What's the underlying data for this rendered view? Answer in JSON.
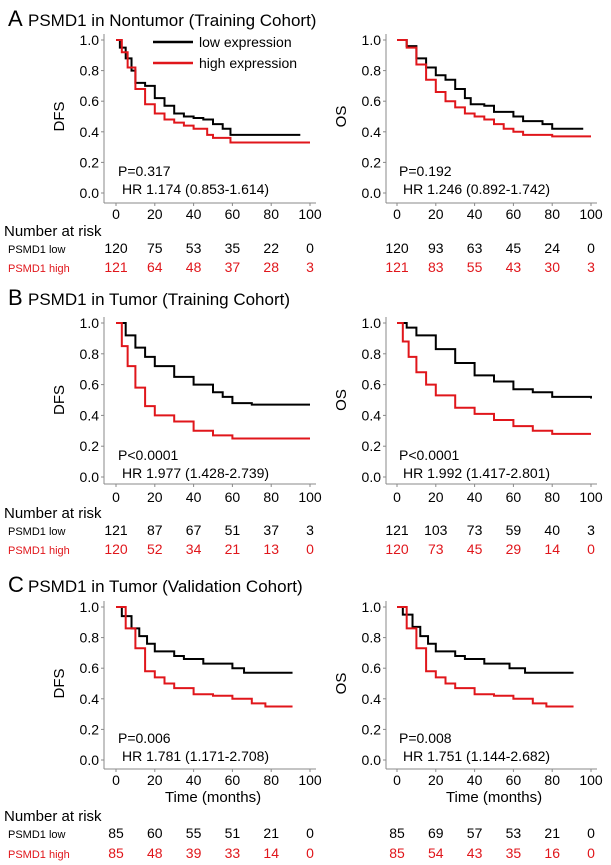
{
  "colors": {
    "low": "#000000",
    "high": "#e0161b"
  },
  "legend": {
    "low": "low expression",
    "high": "high expression"
  },
  "risk_heading": "Number at risk",
  "row_labels": {
    "low": "PSMD1 low",
    "high": "PSMD1 high"
  },
  "panels": [
    {
      "letter": "A",
      "title": "PSMD1 in Nontumor  (Training Cohort)",
      "xlabel": "",
      "plots": [
        {
          "type": "line",
          "ylabel": "DFS",
          "p": "P=0.317",
          "hr": "HR 1.174 (0.853-1.614)",
          "xlim": [
            0,
            100
          ],
          "ylim": [
            0,
            1
          ],
          "xticks": [
            "0",
            "20",
            "40",
            "60",
            "80",
            "100"
          ],
          "yticks": [
            "0.0",
            "0.2",
            "0.4",
            "0.6",
            "0.8",
            "1.0"
          ],
          "low": [
            [
              0,
              1
            ],
            [
              2,
              0.95
            ],
            [
              5,
              0.88
            ],
            [
              8,
              0.8
            ],
            [
              10,
              0.72
            ],
            [
              15,
              0.7
            ],
            [
              20,
              0.62
            ],
            [
              25,
              0.57
            ],
            [
              30,
              0.52
            ],
            [
              35,
              0.5
            ],
            [
              40,
              0.49
            ],
            [
              45,
              0.48
            ],
            [
              50,
              0.45
            ],
            [
              55,
              0.42
            ],
            [
              59,
              0.38
            ],
            [
              95,
              0.38
            ]
          ],
          "high": [
            [
              0,
              1
            ],
            [
              3,
              0.92
            ],
            [
              6,
              0.82
            ],
            [
              10,
              0.68
            ],
            [
              15,
              0.58
            ],
            [
              20,
              0.52
            ],
            [
              25,
              0.48
            ],
            [
              30,
              0.46
            ],
            [
              35,
              0.44
            ],
            [
              40,
              0.42
            ],
            [
              47,
              0.38
            ],
            [
              50,
              0.36
            ],
            [
              59,
              0.33
            ],
            [
              100,
              0.33
            ]
          ],
          "risk_low": [
            "120",
            "75",
            "53",
            "35",
            "22",
            "0"
          ],
          "risk_high": [
            "121",
            "64",
            "48",
            "37",
            "28",
            "3"
          ]
        },
        {
          "type": "line",
          "ylabel": "OS",
          "p": "P=0.192",
          "hr": "HR 1.246 (0.892-1.742)",
          "xlim": [
            0,
            100
          ],
          "ylim": [
            0,
            1
          ],
          "xticks": [
            "0",
            "20",
            "40",
            "60",
            "80",
            "100"
          ],
          "yticks": [
            "0.0",
            "0.2",
            "0.4",
            "0.6",
            "0.8",
            "1.0"
          ],
          "low": [
            [
              0,
              1
            ],
            [
              5,
              0.96
            ],
            [
              10,
              0.88
            ],
            [
              15,
              0.82
            ],
            [
              20,
              0.77
            ],
            [
              25,
              0.74
            ],
            [
              30,
              0.68
            ],
            [
              35,
              0.62
            ],
            [
              38,
              0.58
            ],
            [
              45,
              0.57
            ],
            [
              50,
              0.53
            ],
            [
              60,
              0.5
            ],
            [
              65,
              0.47
            ],
            [
              75,
              0.45
            ],
            [
              80,
              0.42
            ],
            [
              96,
              0.42
            ]
          ],
          "high": [
            [
              0,
              1
            ],
            [
              5,
              0.95
            ],
            [
              10,
              0.84
            ],
            [
              15,
              0.74
            ],
            [
              20,
              0.66
            ],
            [
              25,
              0.6
            ],
            [
              30,
              0.56
            ],
            [
              35,
              0.52
            ],
            [
              40,
              0.5
            ],
            [
              45,
              0.48
            ],
            [
              50,
              0.45
            ],
            [
              55,
              0.42
            ],
            [
              60,
              0.4
            ],
            [
              65,
              0.38
            ],
            [
              80,
              0.37
            ],
            [
              100,
              0.37
            ]
          ],
          "risk_low": [
            "120",
            "93",
            "63",
            "45",
            "24",
            "0"
          ],
          "risk_high": [
            "121",
            "83",
            "55",
            "43",
            "30",
            "3"
          ]
        }
      ]
    },
    {
      "letter": "B",
      "title": "PSMD1 in Tumor (Training Cohort)",
      "xlabel": "",
      "plots": [
        {
          "type": "line",
          "ylabel": "DFS",
          "p": "P<0.0001",
          "hr": "HR 1.977 (1.428-2.739)",
          "xlim": [
            0,
            100
          ],
          "ylim": [
            0,
            1
          ],
          "xticks": [
            "0",
            "20",
            "40",
            "60",
            "80",
            "100"
          ],
          "yticks": [
            "0.0",
            "0.2",
            "0.4",
            "0.6",
            "0.8",
            "1.0"
          ],
          "low": [
            [
              0,
              1
            ],
            [
              5,
              0.92
            ],
            [
              10,
              0.84
            ],
            [
              15,
              0.78
            ],
            [
              20,
              0.72
            ],
            [
              30,
              0.65
            ],
            [
              40,
              0.6
            ],
            [
              50,
              0.55
            ],
            [
              55,
              0.52
            ],
            [
              60,
              0.48
            ],
            [
              70,
              0.47
            ],
            [
              100,
              0.47
            ]
          ],
          "high": [
            [
              0,
              1
            ],
            [
              3,
              0.85
            ],
            [
              6,
              0.72
            ],
            [
              10,
              0.58
            ],
            [
              15,
              0.46
            ],
            [
              20,
              0.4
            ],
            [
              30,
              0.36
            ],
            [
              40,
              0.3
            ],
            [
              50,
              0.27
            ],
            [
              60,
              0.25
            ],
            [
              100,
              0.25
            ]
          ],
          "risk_low": [
            "121",
            "87",
            "67",
            "51",
            "37",
            "3"
          ],
          "risk_high": [
            "120",
            "52",
            "34",
            "21",
            "13",
            "0"
          ]
        },
        {
          "type": "line",
          "ylabel": "OS",
          "p": "P<0.0001",
          "hr": "HR 1.992 (1.417-2.801)",
          "xlim": [
            0,
            100
          ],
          "ylim": [
            0,
            1
          ],
          "xticks": [
            "0",
            "20",
            "40",
            "60",
            "80",
            "100"
          ],
          "yticks": [
            "0.0",
            "0.2",
            "0.4",
            "0.6",
            "0.8",
            "1.0"
          ],
          "low": [
            [
              0,
              1
            ],
            [
              5,
              0.97
            ],
            [
              10,
              0.92
            ],
            [
              20,
              0.83
            ],
            [
              30,
              0.74
            ],
            [
              40,
              0.66
            ],
            [
              50,
              0.62
            ],
            [
              60,
              0.57
            ],
            [
              70,
              0.55
            ],
            [
              80,
              0.52
            ],
            [
              100,
              0.51
            ]
          ],
          "high": [
            [
              0,
              1
            ],
            [
              3,
              0.88
            ],
            [
              6,
              0.78
            ],
            [
              10,
              0.68
            ],
            [
              15,
              0.6
            ],
            [
              20,
              0.53
            ],
            [
              30,
              0.45
            ],
            [
              40,
              0.41
            ],
            [
              50,
              0.37
            ],
            [
              60,
              0.33
            ],
            [
              70,
              0.3
            ],
            [
              80,
              0.28
            ],
            [
              100,
              0.28
            ]
          ],
          "risk_low": [
            "121",
            "103",
            "73",
            "59",
            "40",
            "3"
          ],
          "risk_high": [
            "120",
            "73",
            "45",
            "29",
            "14",
            "0"
          ]
        }
      ]
    },
    {
      "letter": "C",
      "title": "PSMD1 in Tumor (Validation Cohort)",
      "xlabel": "Time (months)",
      "plots": [
        {
          "type": "line",
          "ylabel": "DFS",
          "p": "P=0.006",
          "hr": "HR 1.781 (1.171-2.708)",
          "xlim": [
            0,
            100
          ],
          "ylim": [
            0,
            1
          ],
          "xticks": [
            "0",
            "20",
            "40",
            "60",
            "80",
            "100"
          ],
          "yticks": [
            "0.0",
            "0.2",
            "0.4",
            "0.6",
            "0.8",
            "1.0"
          ],
          "low": [
            [
              0,
              1
            ],
            [
              3,
              0.94
            ],
            [
              8,
              0.86
            ],
            [
              12,
              0.81
            ],
            [
              16,
              0.76
            ],
            [
              20,
              0.71
            ],
            [
              30,
              0.68
            ],
            [
              35,
              0.66
            ],
            [
              45,
              0.63
            ],
            [
              60,
              0.6
            ],
            [
              66,
              0.57
            ],
            [
              91,
              0.57
            ]
          ],
          "high": [
            [
              0,
              1
            ],
            [
              5,
              0.86
            ],
            [
              10,
              0.73
            ],
            [
              15,
              0.58
            ],
            [
              20,
              0.54
            ],
            [
              25,
              0.5
            ],
            [
              30,
              0.47
            ],
            [
              40,
              0.43
            ],
            [
              50,
              0.42
            ],
            [
              60,
              0.4
            ],
            [
              70,
              0.37
            ],
            [
              77,
              0.35
            ],
            [
              91,
              0.35
            ]
          ],
          "risk_low": [
            "85",
            "60",
            "55",
            "51",
            "21",
            "0"
          ],
          "risk_high": [
            "85",
            "48",
            "39",
            "33",
            "14",
            "0"
          ]
        },
        {
          "type": "line",
          "ylabel": "OS",
          "p": "P=0.008",
          "hr": "HR 1.751 (1.144-2.682)",
          "xlim": [
            0,
            100
          ],
          "ylim": [
            0,
            1
          ],
          "xticks": [
            "0",
            "20",
            "40",
            "60",
            "80",
            "100"
          ],
          "yticks": [
            "0.0",
            "0.2",
            "0.4",
            "0.6",
            "0.8",
            "1.0"
          ],
          "low": [
            [
              0,
              1
            ],
            [
              3,
              0.95
            ],
            [
              8,
              0.87
            ],
            [
              12,
              0.81
            ],
            [
              16,
              0.76
            ],
            [
              20,
              0.71
            ],
            [
              30,
              0.68
            ],
            [
              35,
              0.66
            ],
            [
              45,
              0.63
            ],
            [
              58,
              0.6
            ],
            [
              66,
              0.57
            ],
            [
              91,
              0.57
            ]
          ],
          "high": [
            [
              0,
              1
            ],
            [
              5,
              0.86
            ],
            [
              10,
              0.73
            ],
            [
              15,
              0.58
            ],
            [
              20,
              0.54
            ],
            [
              25,
              0.5
            ],
            [
              30,
              0.47
            ],
            [
              40,
              0.43
            ],
            [
              50,
              0.42
            ],
            [
              60,
              0.4
            ],
            [
              70,
              0.37
            ],
            [
              77,
              0.35
            ],
            [
              91,
              0.35
            ]
          ],
          "risk_low": [
            "85",
            "69",
            "57",
            "53",
            "21",
            "0"
          ],
          "risk_high": [
            "85",
            "54",
            "43",
            "35",
            "16",
            "0"
          ]
        }
      ]
    }
  ]
}
